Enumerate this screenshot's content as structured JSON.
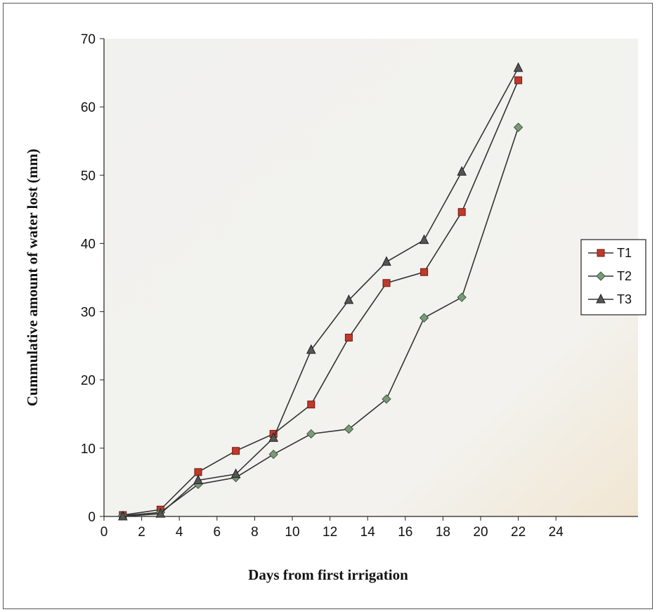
{
  "chart_data": {
    "type": "line",
    "title": "",
    "xlabel": "Days from first irrigation",
    "ylabel": "Cummulative amount of water lost (mm)",
    "xlim": [
      0,
      24
    ],
    "ylim": [
      0,
      70
    ],
    "xticks": [
      0,
      2,
      4,
      6,
      8,
      10,
      12,
      14,
      16,
      18,
      20,
      22,
      24
    ],
    "yticks": [
      0,
      10,
      20,
      30,
      40,
      50,
      60,
      70
    ],
    "grid": false,
    "legend_position": "right",
    "series": [
      {
        "name": "T1",
        "color": "#c0392b",
        "marker": "square",
        "x": [
          1,
          3,
          5,
          7,
          9,
          11,
          13,
          15,
          17,
          19,
          22
        ],
        "y": [
          0.2,
          1.0,
          6.5,
          9.6,
          12.1,
          16.4,
          26.2,
          34.2,
          35.8,
          44.6,
          63.9
        ]
      },
      {
        "name": "T2",
        "color": "#7a9a7a",
        "marker": "diamond",
        "x": [
          1,
          3,
          5,
          7,
          9,
          11,
          13,
          15,
          17,
          19,
          22
        ],
        "y": [
          0.1,
          0.6,
          4.7,
          5.7,
          9.1,
          12.1,
          12.8,
          17.2,
          29.1,
          32.1,
          57.0
        ]
      },
      {
        "name": "T3",
        "color": "#555555",
        "marker": "triangle",
        "x": [
          1,
          3,
          5,
          7,
          9,
          11,
          13,
          15,
          17,
          19,
          22
        ],
        "y": [
          0.0,
          0.4,
          5.3,
          6.2,
          11.5,
          24.4,
          31.7,
          37.3,
          40.5,
          50.5,
          65.7
        ]
      }
    ]
  }
}
